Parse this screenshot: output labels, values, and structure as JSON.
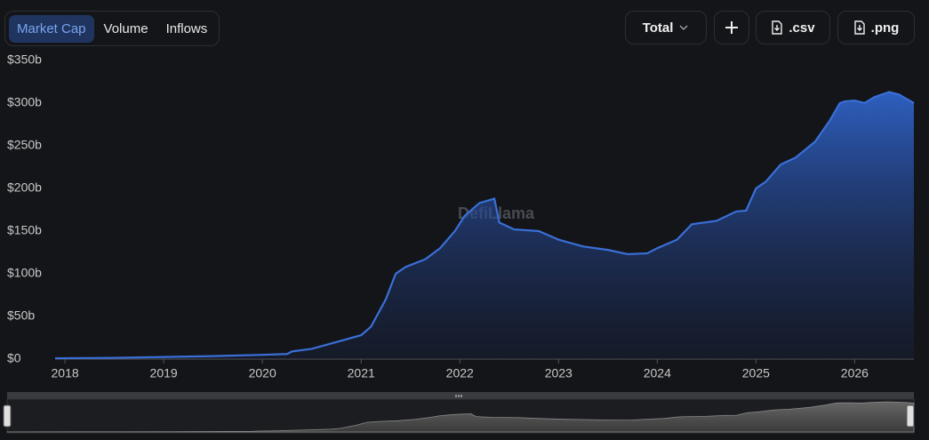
{
  "toolbar": {
    "tabs": [
      "Market Cap",
      "Volume",
      "Inflows"
    ],
    "active_tab": 0,
    "dropdown": "Total",
    "buttons": [
      ".csv",
      ".png"
    ]
  },
  "chart_data": {
    "type": "area",
    "watermark": "DefiLlama",
    "color": "#3a6fd8",
    "x": [
      2017.9,
      2018.5,
      2019.0,
      2019.5,
      2020.0,
      2020.25,
      2020.3,
      2020.5,
      2020.75,
      2021.0,
      2021.1,
      2021.25,
      2021.35,
      2021.45,
      2021.65,
      2021.8,
      2021.95,
      2022.05,
      2022.2,
      2022.35,
      2022.4,
      2022.55,
      2022.8,
      2023.0,
      2023.25,
      2023.5,
      2023.7,
      2023.9,
      2024.0,
      2024.2,
      2024.35,
      2024.6,
      2024.8,
      2024.9,
      2025.0,
      2025.1,
      2025.25,
      2025.4,
      2025.6,
      2025.75,
      2025.85,
      2025.9,
      2026.0,
      2026.1,
      2026.2,
      2026.35,
      2026.45,
      2026.6
    ],
    "values": [
      1,
      1.5,
      2.5,
      3.5,
      5,
      6,
      9,
      12,
      20,
      28,
      38,
      70,
      100,
      108,
      117,
      130,
      150,
      168,
      183,
      188,
      160,
      152,
      150,
      140,
      132,
      128,
      123,
      124,
      130,
      140,
      158,
      162,
      173,
      174,
      200,
      208,
      228,
      236,
      255,
      280,
      300,
      302,
      303,
      300,
      307,
      313,
      310,
      300
    ],
    "xlim": [
      2017.9,
      2026.6
    ],
    "xticks": [
      2018,
      2019,
      2020,
      2021,
      2022,
      2023,
      2024,
      2025,
      2026
    ],
    "ylim": [
      0,
      350
    ],
    "yticks": [
      {
        "value": 0,
        "label": "$0"
      },
      {
        "value": 50,
        "label": "$50b"
      },
      {
        "value": 100,
        "label": "$100b"
      },
      {
        "value": 150,
        "label": "$150b"
      },
      {
        "value": 200,
        "label": "$200b"
      },
      {
        "value": 250,
        "label": "$250b"
      },
      {
        "value": 300,
        "label": "$300b"
      },
      {
        "value": 350,
        "label": "$350b"
      }
    ]
  }
}
